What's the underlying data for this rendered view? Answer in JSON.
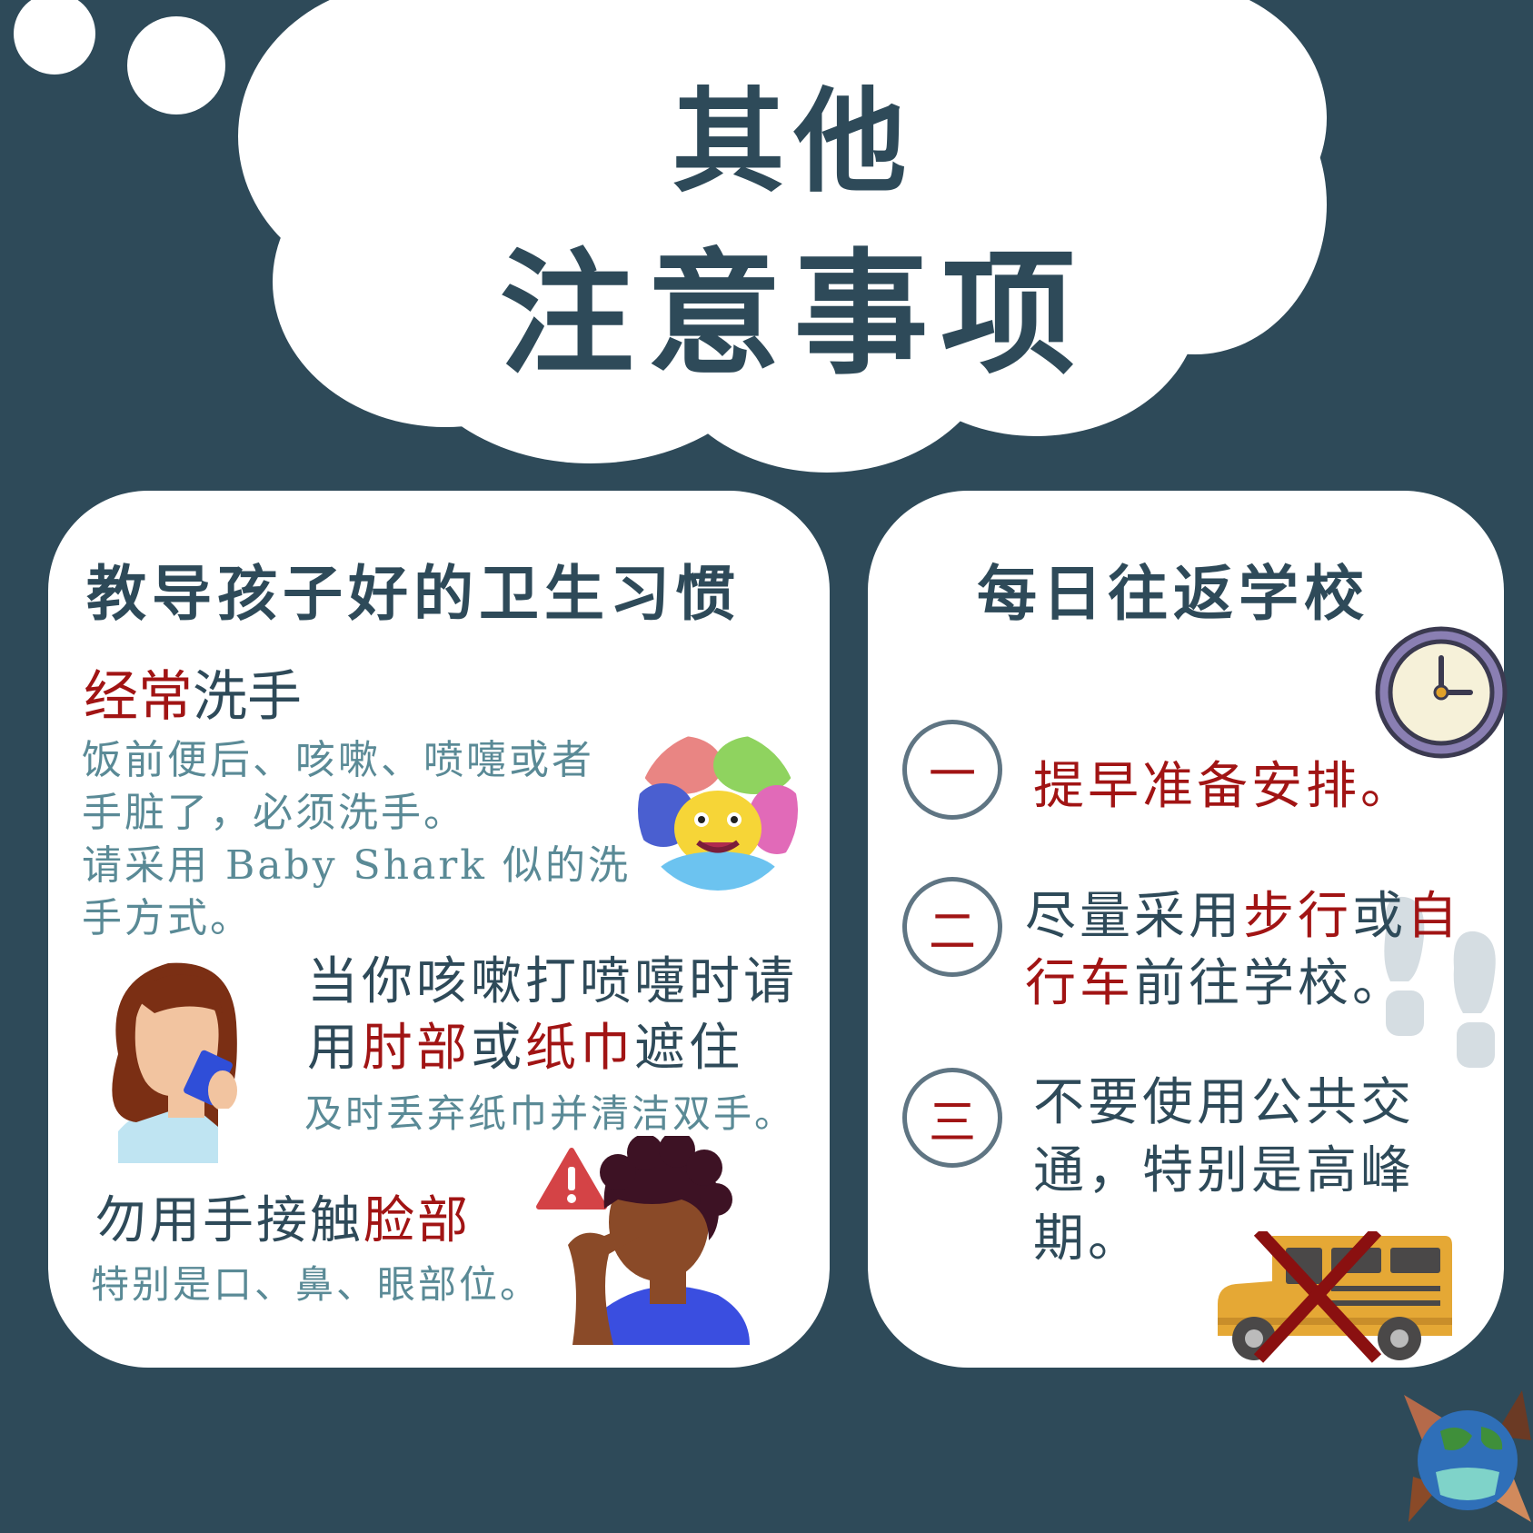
{
  "header": {
    "title_line1": "其他",
    "title_line2": "注意事项"
  },
  "hygiene": {
    "heading": "教导孩子好的卫生习惯",
    "handwash": {
      "title_red": "经常",
      "title_rest": "洗手",
      "line1": "饭前便后、咳嗽、喷嚏或者",
      "line2": "手脏了，必须洗手。",
      "line3": "请采用 Baby Shark 似的洗",
      "line4": "手方式。"
    },
    "cough": {
      "line1": "当你咳嗽打喷嚏时请",
      "line2_a": "用",
      "line2_b": "肘部",
      "line2_c": "或",
      "line2_d": "纸巾",
      "line2_e": "遮住",
      "sub": "及时丢弃纸巾并清洁双手。"
    },
    "face": {
      "title_a": "勿用手接触",
      "title_b": "脸部",
      "sub": "特别是口、鼻、眼部位。"
    }
  },
  "commute": {
    "heading": "每日往返学校",
    "item1": {
      "num": "一",
      "text": "提早准备安排。"
    },
    "item2": {
      "num": "二",
      "l1_a": "尽量采用",
      "l1_b": "步行",
      "l1_c": "或",
      "l1_d": "自",
      "l2_a": "行车",
      "l2_b": "前往学校。"
    },
    "item3": {
      "num": "三",
      "line1": "不要使用公共交",
      "line2": "通，特别是高峰",
      "line3": "期。"
    }
  },
  "icons": {
    "clock": "clock-icon",
    "shark": "baby-shark-icon",
    "woman": "woman-coughing-illustration",
    "man": "man-touching-face-illustration",
    "warning": "warning-icon",
    "footprints": "footprints-icon",
    "bus": "crossed-out-bus-icon",
    "logo": "earth-mask-logo"
  },
  "colors": {
    "background": "#2e4a59",
    "accent_red": "#a11414",
    "muted_teal": "#5a8a96"
  }
}
